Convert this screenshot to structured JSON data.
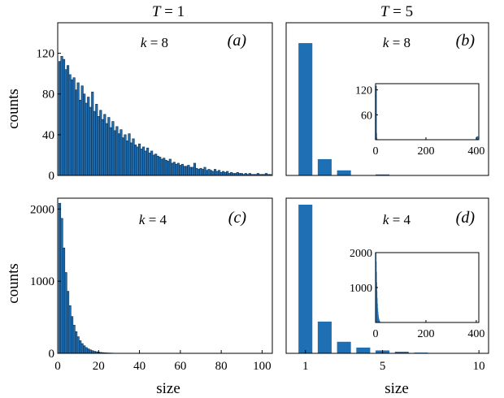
{
  "figure": {
    "col_titles": [
      {
        "var": "T",
        "eq": " = 1"
      },
      {
        "var": "T",
        "eq": " = 5"
      }
    ],
    "ylabel": "counts",
    "xlabel": "size"
  },
  "colors": {
    "bar_fill": "#1f6fb5",
    "bar_edge": "#0c2a44",
    "axis": "#000000"
  },
  "chart_data": [
    {
      "panel": "a",
      "tag": "(a)",
      "k_label": {
        "var": "k",
        "eq": " = 8"
      },
      "type": "bar",
      "xlim": [
        0,
        105
      ],
      "ylim": [
        0,
        150
      ],
      "yticks": [
        0,
        40,
        80,
        120
      ],
      "xticks": [],
      "x_start": 1,
      "bin_width": 1,
      "values": [
        112,
        117,
        114,
        104,
        108,
        99,
        94,
        96,
        84,
        91,
        74,
        88,
        80,
        71,
        77,
        67,
        82,
        63,
        70,
        58,
        64,
        55,
        60,
        51,
        57,
        47,
        53,
        44,
        48,
        41,
        45,
        37,
        40,
        34,
        41,
        32,
        36,
        30,
        28,
        31,
        26,
        28,
        24,
        27,
        22,
        24,
        20,
        21,
        19,
        18,
        16,
        17,
        15,
        14,
        16,
        12,
        13,
        11,
        12,
        10,
        11,
        9,
        9,
        10,
        8,
        8,
        12,
        7,
        6,
        7,
        6,
        8,
        5,
        6,
        5,
        4,
        6,
        4,
        5,
        3,
        4,
        3,
        4,
        2,
        3,
        2,
        2,
        3,
        2,
        2,
        1,
        2,
        1,
        2,
        1,
        1,
        1,
        2,
        1,
        1,
        1,
        2,
        1,
        1
      ]
    },
    {
      "panel": "b",
      "tag": "(b)",
      "k_label": {
        "var": "k",
        "eq": " = 8"
      },
      "type": "bar",
      "xlim": [
        0,
        10.5
      ],
      "ylim": [
        0,
        150
      ],
      "yticks": [],
      "xticks": [],
      "categories": [
        1,
        2,
        3,
        4,
        5
      ],
      "values": [
        130,
        16,
        5,
        0,
        1
      ],
      "inset": {
        "type": "bar",
        "xlim": [
          0,
          410
        ],
        "ylim": [
          0,
          135
        ],
        "xticks": [
          0,
          200,
          400
        ],
        "yticks": [
          60,
          120
        ],
        "spikes": [
          {
            "x": 1,
            "y": 130
          },
          {
            "x": 2,
            "y": 16
          },
          {
            "x": 3,
            "y": 5
          },
          {
            "x": 404,
            "y": 8
          }
        ]
      }
    },
    {
      "panel": "c",
      "tag": "(c)",
      "k_label": {
        "var": "k",
        "eq": " = 4"
      },
      "type": "bar",
      "xlim": [
        0,
        105
      ],
      "ylim": [
        0,
        2150
      ],
      "yticks": [
        0,
        1000,
        2000
      ],
      "xticks": [
        0,
        20,
        40,
        60,
        80,
        100
      ],
      "x_start": 1,
      "bin_width": 1,
      "values": [
        2080,
        1870,
        1460,
        1120,
        860,
        660,
        510,
        390,
        300,
        230,
        175,
        135,
        105,
        80,
        62,
        48,
        37,
        28,
        22,
        17,
        13,
        10,
        8,
        6,
        5,
        4,
        3,
        2,
        2,
        1
      ]
    },
    {
      "panel": "d",
      "tag": "(d)",
      "k_label": {
        "var": "k",
        "eq": " = 4"
      },
      "type": "bar",
      "xlim": [
        0,
        10.5
      ],
      "ylim": [
        0,
        2150
      ],
      "yticks": [],
      "xticks": [
        1,
        5,
        10
      ],
      "categories": [
        1,
        2,
        3,
        4,
        5,
        6,
        7,
        8
      ],
      "values": [
        2060,
        440,
        160,
        80,
        40,
        22,
        10,
        4
      ],
      "inset": {
        "type": "bar",
        "xlim": [
          0,
          410
        ],
        "ylim": [
          0,
          2000
        ],
        "xticks": [
          0,
          200,
          400
        ],
        "yticks": [
          1000,
          2000
        ],
        "decay": [
          2000,
          1750,
          1450,
          1150,
          900,
          700,
          540,
          410,
          310,
          230,
          170,
          125,
          90,
          65,
          45,
          32,
          22,
          15,
          10,
          7,
          5,
          3,
          2,
          1
        ]
      }
    }
  ]
}
